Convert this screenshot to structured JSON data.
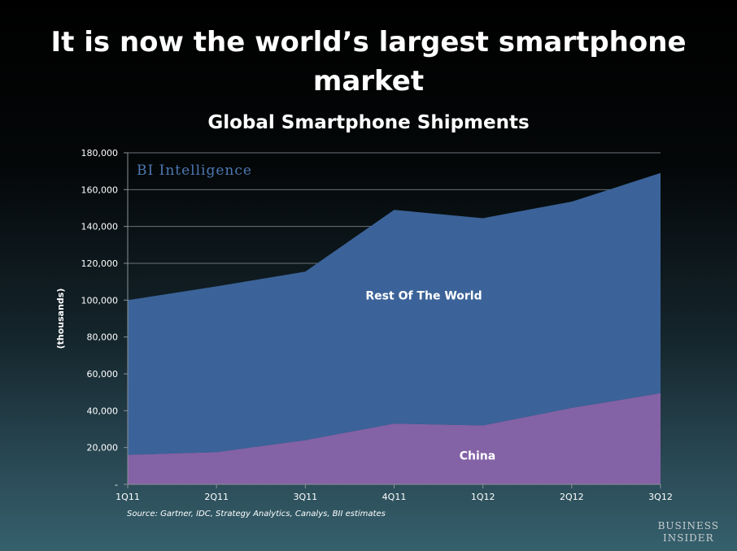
{
  "headline": "It is now the world’s largest smartphone market",
  "source": "Source: Gartner, IDC, Strategy Analytics, Canalys, BII estimates",
  "watermark": "BI Intelligence",
  "publisher": {
    "line1": "Business",
    "line2": "Insider"
  },
  "chart_data": {
    "type": "area",
    "stacked": true,
    "title": "Global Smartphone Shipments",
    "xlabel": "",
    "ylabel": "(thousands)",
    "categories": [
      "1Q11",
      "2Q11",
      "3Q11",
      "4Q11",
      "1Q12",
      "2Q12",
      "3Q12"
    ],
    "ylim": [
      0,
      180000
    ],
    "yticks": [
      0,
      20000,
      40000,
      60000,
      80000,
      100000,
      120000,
      140000,
      160000,
      180000
    ],
    "ytick_labels": [
      "-",
      "20,000",
      "40,000",
      "60,000",
      "80,000",
      "100,000",
      "120,000",
      "140,000",
      "160,000",
      "180,000"
    ],
    "grid": true,
    "series": [
      {
        "name": "China",
        "color": "#8462a6",
        "values": [
          16000,
          17500,
          24000,
          33000,
          32000,
          41500,
          49500
        ]
      },
      {
        "name": "Rest Of The World",
        "color": "#3b6399",
        "values": [
          84000,
          90000,
          91500,
          116000,
          112500,
          112000,
          119500
        ]
      }
    ]
  }
}
